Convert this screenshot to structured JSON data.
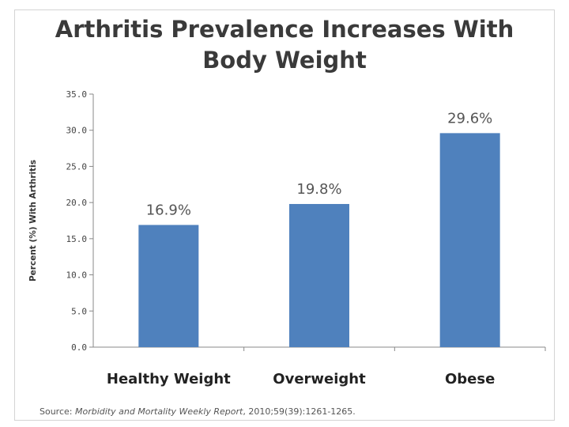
{
  "chart_data": {
    "type": "bar",
    "title": "Arthritis Prevalence Increases With Body Weight",
    "title_lines": [
      "Arthritis Prevalence Increases With",
      "Body Weight"
    ],
    "ylabel": "Percent (%) With Arthritis",
    "xlabel": "",
    "categories": [
      "Healthy Weight",
      "Overweight",
      "Obese"
    ],
    "values": [
      16.9,
      19.8,
      29.6
    ],
    "data_labels": [
      "16.9%",
      "19.8%",
      "29.6%"
    ],
    "ylim": [
      0,
      35
    ],
    "yticks": [
      0,
      5,
      10,
      15,
      20,
      25,
      30,
      35
    ],
    "ytick_labels": [
      "0.0",
      "5.0",
      "10.0",
      "15.0",
      "20.0",
      "25.0",
      "30.0",
      "35.0"
    ],
    "grid": false,
    "bar_color": "#4f81bd"
  },
  "source": {
    "prefix": "Source: ",
    "journal": "Morbidity and Mortality Weekly Report",
    "citation": ", 2010;59(39):1261-1265."
  }
}
